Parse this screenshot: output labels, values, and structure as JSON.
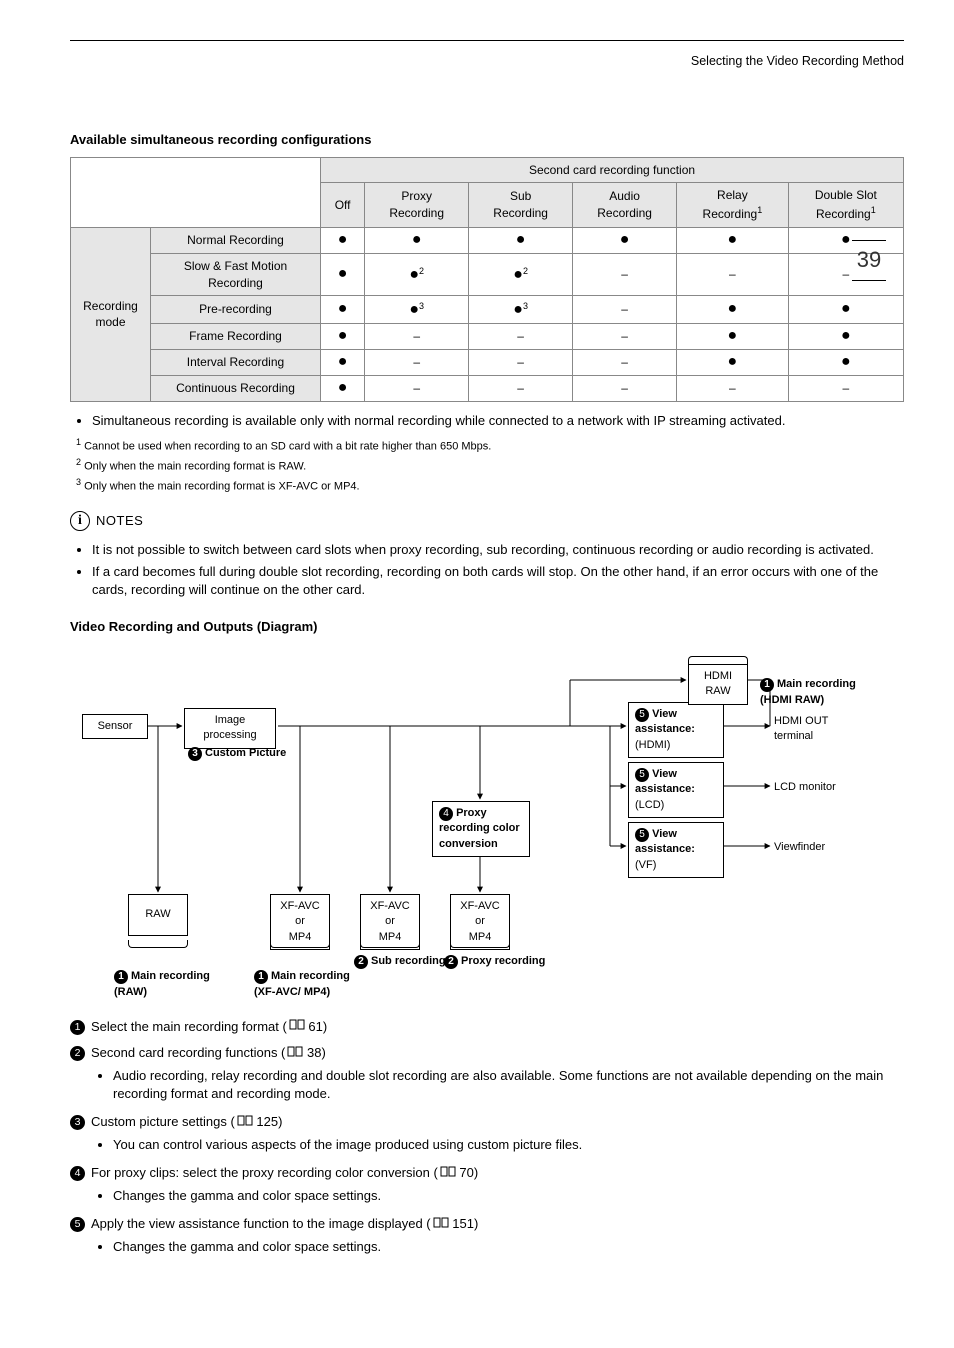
{
  "header": {
    "right": "Selecting the Video Recording Method"
  },
  "page_number": "39",
  "section_title": "Available simultaneous recording configurations",
  "table": {
    "super_header": "Second card recording function",
    "columns": [
      "Off",
      "Proxy\nRecording",
      "Sub\nRecording",
      "Audio\nRecording",
      "Relay\nRecording",
      "Double Slot\nRecording"
    ],
    "column_sup": [
      "",
      "",
      "",
      "",
      "1",
      "1"
    ],
    "row_group_label": "Recording\nmode",
    "rows": [
      {
        "label": "Normal Recording",
        "cells": [
          "●",
          "●",
          "●",
          "●",
          "●",
          "●"
        ],
        "sup": [
          "",
          "",
          "",
          "",
          "",
          ""
        ]
      },
      {
        "label": "Slow & Fast Motion Recording",
        "cells": [
          "●",
          "●",
          "●",
          "–",
          "–",
          "–"
        ],
        "sup": [
          "",
          "2",
          "2",
          "",
          "",
          ""
        ]
      },
      {
        "label": "Pre-recording",
        "cells": [
          "●",
          "●",
          "●",
          "–",
          "●",
          "●"
        ],
        "sup": [
          "",
          "3",
          "3",
          "",
          "",
          ""
        ]
      },
      {
        "label": "Frame Recording",
        "cells": [
          "●",
          "–",
          "–",
          "–",
          "●",
          "●"
        ],
        "sup": [
          "",
          "",
          "",
          "",
          "",
          ""
        ]
      },
      {
        "label": "Interval Recording",
        "cells": [
          "●",
          "–",
          "–",
          "–",
          "●",
          "●"
        ],
        "sup": [
          "",
          "",
          "",
          "",
          "",
          ""
        ]
      },
      {
        "label": "Continuous Recording",
        "cells": [
          "●",
          "–",
          "–",
          "–",
          "–",
          "–"
        ],
        "sup": [
          "",
          "",
          "",
          "",
          "",
          ""
        ]
      }
    ]
  },
  "table_note": "Simultaneous recording is available only with normal recording while connected to a network with IP streaming activated.",
  "footnotes": [
    {
      "n": "1",
      "text": "Cannot be used when recording to an SD card with a bit rate higher than 650 Mbps."
    },
    {
      "n": "2",
      "text": "Only when the main recording format is RAW."
    },
    {
      "n": "3",
      "text": "Only when the main recording format is XF-AVC or MP4."
    }
  ],
  "notes_label": "NOTES",
  "notes": [
    "It is not possible to switch between card slots when proxy recording, sub recording, continuous recording or audio recording is activated.",
    "If a card becomes full during double slot recording, recording on both cards will stop. On the other hand, if an error occurs with one of the cards, recording will continue on the other card."
  ],
  "diagram_title": "Video Recording and Outputs (Diagram)",
  "diagram": {
    "boxes": {
      "sensor": {
        "label": "Sensor"
      },
      "imgproc": {
        "label": "Image\nprocessing"
      },
      "cp_label": {
        "num": "3",
        "label": "Custom Picture"
      },
      "proxy_conv": {
        "num": "4",
        "label": "Proxy\nrecording color\nconversion"
      },
      "va_hdmi": {
        "num": "5",
        "title": "View\nassistance:",
        "sub": "(HDMI)"
      },
      "va_lcd": {
        "num": "5",
        "title": "View\nassistance:",
        "sub": "(LCD)"
      },
      "va_vf": {
        "num": "5",
        "title": "View\nassistance:",
        "sub": "(VF)"
      },
      "raw": {
        "label": "RAW"
      },
      "xf1": {
        "label": "XF-AVC\nor\nMP4"
      },
      "xf2": {
        "label": "XF-AVC\nor\nMP4"
      },
      "xf3": {
        "label": "XF-AVC\nor\nMP4"
      },
      "hdmi_raw": {
        "top": "HDMI",
        "bottom": "RAW"
      },
      "hdmi_out": {
        "label": "HDMI OUT\nterminal"
      },
      "lcd": {
        "label": "LCD monitor"
      },
      "vf": {
        "label": "Viewfinder"
      }
    },
    "out_labels": [
      {
        "num": "1",
        "text": "Main recording\n(RAW)"
      },
      {
        "num": "1",
        "text": "Main recording\n(XF-AVC/ MP4)"
      },
      {
        "num": "2",
        "text": "Sub recording"
      },
      {
        "num": "2",
        "text": "Proxy recording"
      }
    ],
    "top_right_label": {
      "num": "1",
      "text": "Main recording\n(HDMI RAW)"
    }
  },
  "numbered": [
    {
      "n": "1",
      "text": "Select the main recording format (",
      "ref": "61",
      "after": ")"
    },
    {
      "n": "2",
      "text": "Second card recording functions (",
      "ref": "38",
      "after": ")",
      "sub": [
        "Audio recording, relay recording and double slot recording are also available. Some functions are not available depending on the main recording format and recording mode."
      ]
    },
    {
      "n": "3",
      "text": "Custom picture settings (",
      "ref": "125",
      "after": ")",
      "sub": [
        "You can control various aspects of the image produced using custom picture files."
      ]
    },
    {
      "n": "4",
      "text": "For proxy clips: select the proxy recording color conversion (",
      "ref": "70",
      "after": ")",
      "sub": [
        "Changes the gamma and color space settings."
      ]
    },
    {
      "n": "5",
      "text": "Apply the view assistance function to the image displayed (",
      "ref": "151",
      "after": ")",
      "sub": [
        "Changes the gamma and color space settings."
      ]
    }
  ],
  "styles": {
    "bg": "#ffffff",
    "header_bg": "#e6e6e6",
    "border": "#888888",
    "text": "#000000"
  }
}
